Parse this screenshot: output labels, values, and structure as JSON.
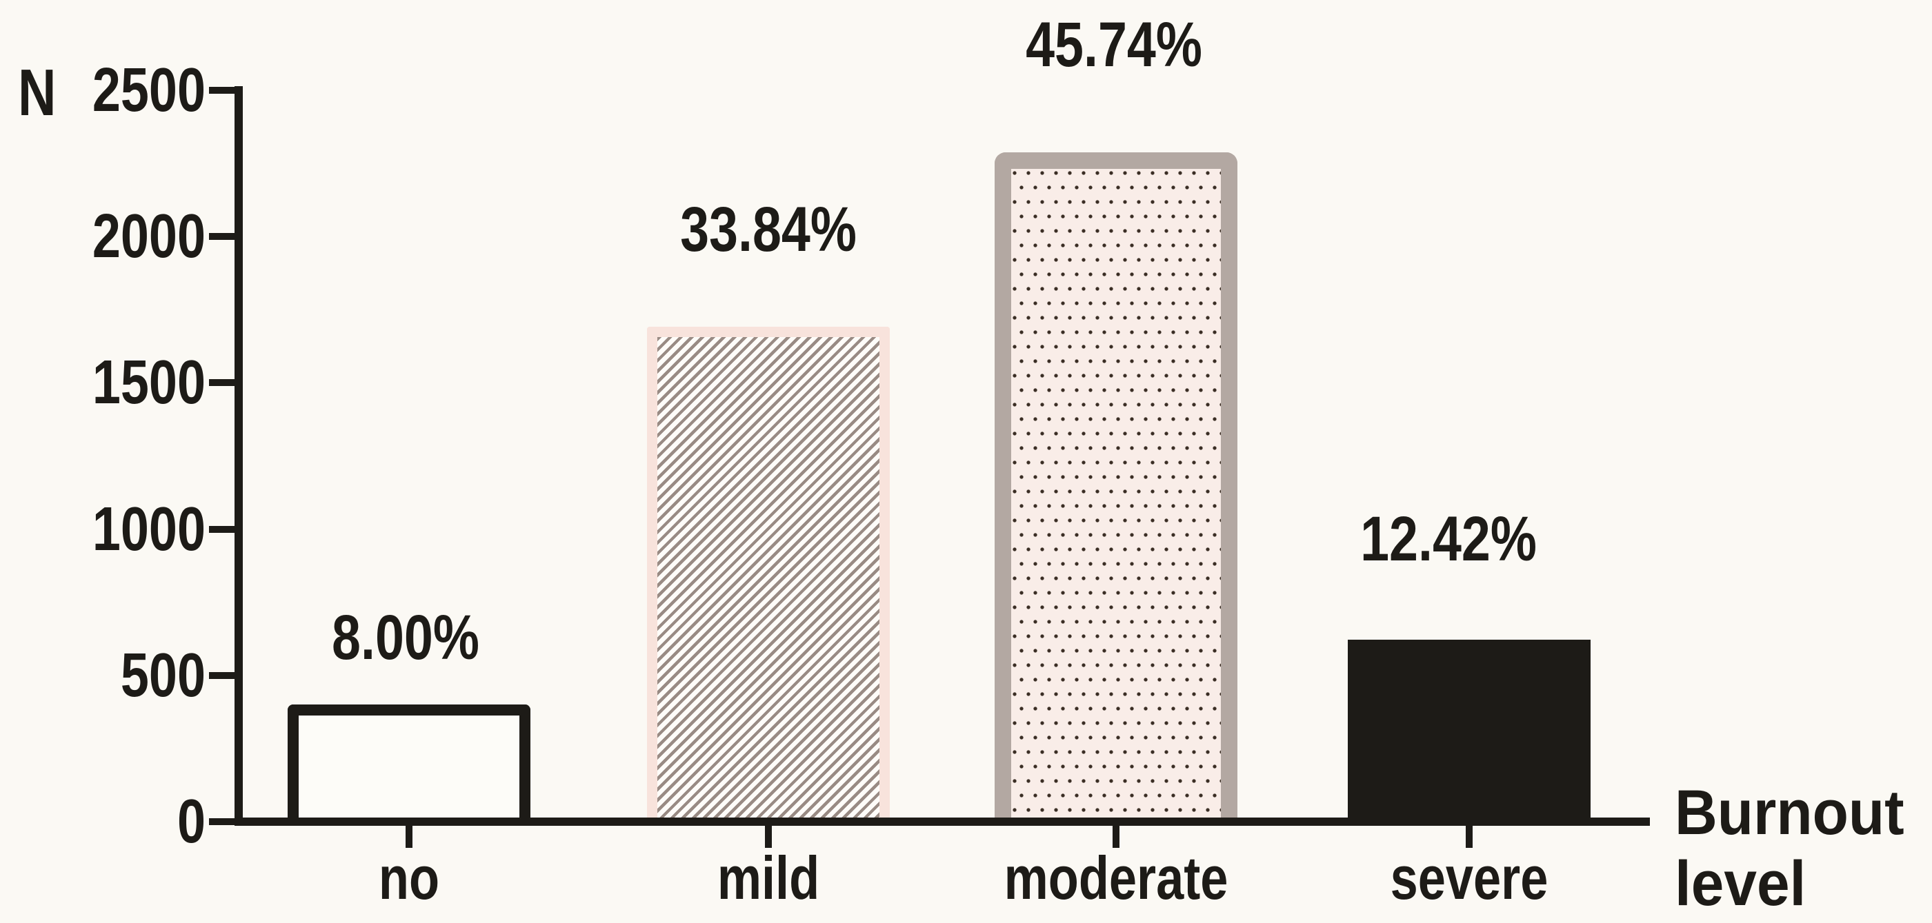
{
  "figure": {
    "background_color": "#fbf9f4",
    "ink_color": "#1d1b17"
  },
  "chart_data": {
    "type": "bar",
    "title": "",
    "ylabel": "N",
    "xlabel": "Burnout level",
    "ylim": [
      0,
      2500
    ],
    "yticks": [
      0,
      500,
      1000,
      1500,
      2000,
      2500
    ],
    "grid": false,
    "legend": false,
    "categories": [
      "no",
      "mild",
      "moderate",
      "severe"
    ],
    "values": [
      400,
      1692,
      2287,
      621
    ],
    "value_labels": [
      "8.00%",
      "33.84%",
      "45.74%",
      "12.42%"
    ],
    "bars": [
      {
        "category": "no",
        "value": 400,
        "label": "8.00%",
        "pattern": "outline",
        "fill": "#fdfcf8",
        "border": "#1d1b17"
      },
      {
        "category": "mild",
        "value": 1692,
        "label": "33.84%",
        "pattern": "diagonal-hatch",
        "fill": "#fefcf9",
        "border": "#f8e3dc",
        "stripe": "#998b84"
      },
      {
        "category": "moderate",
        "value": 2287,
        "label": "45.74%",
        "pattern": "dots",
        "fill": "#f9ede8",
        "border": "#b3a8a2",
        "dot": "#3a2d24"
      },
      {
        "category": "severe",
        "value": 621,
        "label": "12.42%",
        "pattern": "solid",
        "fill": "#1d1b17",
        "border": "#1d1b17"
      }
    ]
  }
}
